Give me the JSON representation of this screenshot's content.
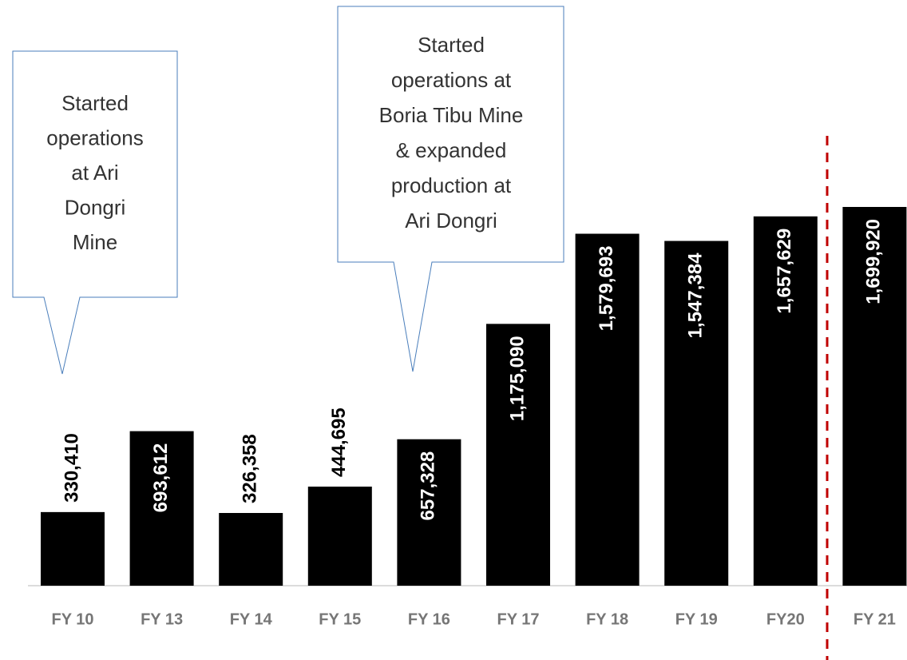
{
  "chart_data": {
    "type": "bar",
    "categories": [
      "FY 10",
      "FY 13",
      "FY 14",
      "FY 15",
      "FY 16",
      "FY 17",
      "FY 18",
      "FY 19",
      "FY20",
      "FY 21"
    ],
    "values": [
      330410,
      693612,
      326358,
      444695,
      657328,
      1175090,
      1579693,
      1547384,
      1657629,
      1699920
    ],
    "value_labels": [
      "330,410",
      "693,612",
      "326,358",
      "444,695",
      "657,328",
      "1,175,090",
      "1,579,693",
      "1,547,384",
      "1,657,629",
      "1,699,920"
    ],
    "color": "#000000",
    "annotations": [
      [
        "Started",
        "operations",
        "at Ari",
        "Dongri",
        "Mine"
      ],
      [
        "Started",
        "operations at",
        "Boria Tibu Mine",
        "& expanded",
        "production at",
        "Ari Dongri"
      ]
    ]
  }
}
